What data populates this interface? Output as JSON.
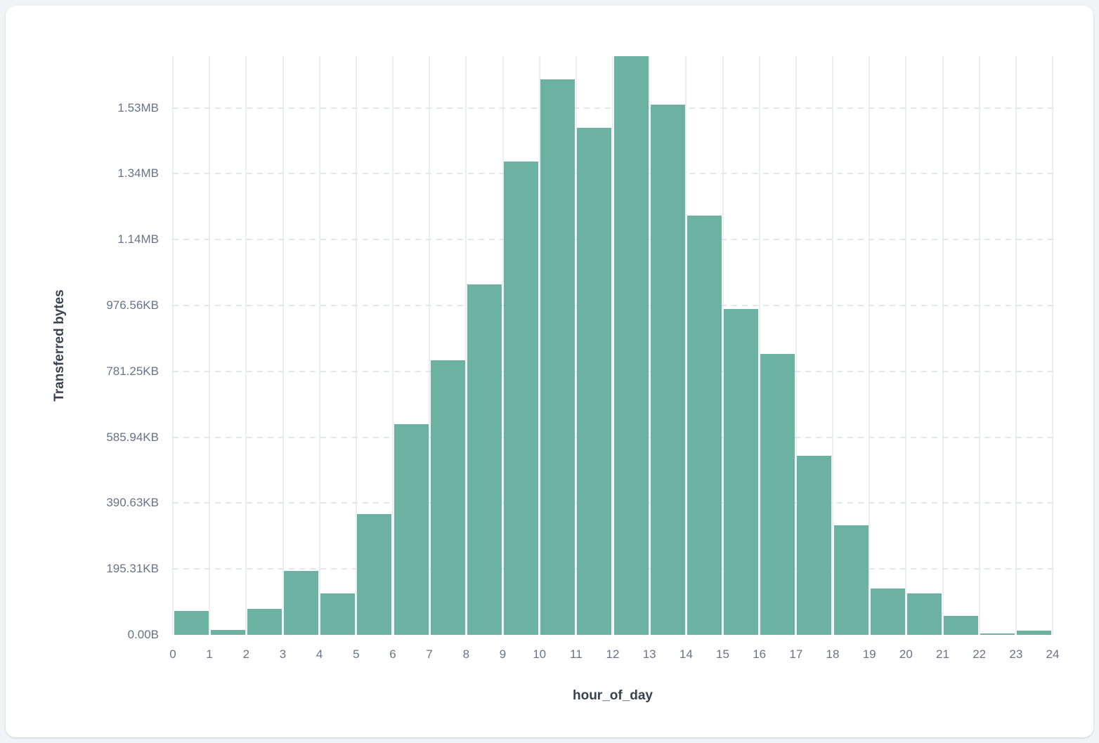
{
  "page": {
    "background_color": "#f2f3f6",
    "card_color": "#ffffff"
  },
  "chart_data": {
    "type": "bar",
    "title": "",
    "xlabel": "hour_of_day",
    "ylabel": "Transferred bytes",
    "unit": "bytes",
    "bar_color": "#6bb2a0",
    "grid": {
      "vertical_line_color": "#eceef3",
      "horizontal_dash_color": "#e3e6ec",
      "horizontal_style": "dashed",
      "vertical_style": "solid"
    },
    "legend_position": "none",
    "categories": [
      0,
      1,
      2,
      3,
      4,
      5,
      6,
      7,
      8,
      9,
      10,
      11,
      12,
      13,
      14,
      15,
      16,
      17,
      18,
      19,
      20,
      21,
      22,
      23
    ],
    "values": [
      72000,
      15000,
      79000,
      194000,
      126000,
      367000,
      640000,
      833000,
      1063000,
      1438000,
      1686000,
      1539000,
      1757000,
      1609000,
      1274000,
      990000,
      853000,
      544000,
      333000,
      141000,
      126000,
      58000,
      4000,
      13000
    ],
    "ylim": [
      0,
      1757000
    ],
    "xlim": [
      0,
      24
    ],
    "x_ticks": [
      "0",
      "1",
      "2",
      "3",
      "4",
      "5",
      "6",
      "7",
      "8",
      "9",
      "10",
      "11",
      "12",
      "13",
      "14",
      "15",
      "16",
      "17",
      "18",
      "19",
      "20",
      "21",
      "22",
      "23",
      "24"
    ],
    "y_ticks": [
      {
        "label": "0.00B",
        "value": 0
      },
      {
        "label": "195.31KB",
        "value": 200000
      },
      {
        "label": "390.63KB",
        "value": 400000
      },
      {
        "label": "585.94KB",
        "value": 600000
      },
      {
        "label": "781.25KB",
        "value": 800000
      },
      {
        "label": "976.56KB",
        "value": 1000000
      },
      {
        "label": "1.14MB",
        "value": 1200000
      },
      {
        "label": "1.34MB",
        "value": 1400000
      },
      {
        "label": "1.53MB",
        "value": 1600000
      }
    ]
  }
}
